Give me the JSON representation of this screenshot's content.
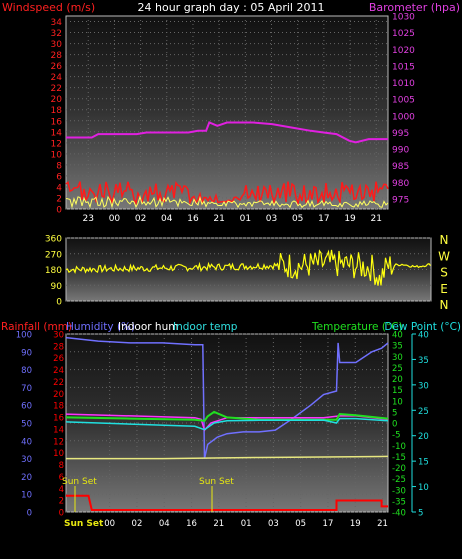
{
  "title": "24 hour graph day : 05 April 2011",
  "colors": {
    "wind_axis": "#ff2020",
    "baro_axis": "#e040e0",
    "wind_series": "#ff1a1a",
    "gust_series": "#ffff60",
    "baro_series": "#e020e0",
    "dir_series": "#ffff10",
    "rain": "#ff0000",
    "humidity": "#7070ff",
    "indoor_hum": "#ff30ff",
    "indoor_temp": "#30e0e0",
    "temperature": "#20e020",
    "dewpoint": "#20e0e0",
    "dir_axis": "#ffff40",
    "yellow_line": "#e8e880",
    "sunset": "#e8e810"
  },
  "chart_data": [
    {
      "type": "line",
      "id": "wind_baro",
      "title": "24 hour graph day : 05 April 2011",
      "ylabel_left": "Windspeed (m/s)",
      "ylabel_right": "Barometer (hpa)",
      "x_ticks": [
        "23",
        "00",
        "02",
        "04",
        "16",
        "21",
        "01",
        "03",
        "05",
        "17",
        "19",
        "21"
      ],
      "y_left_ticks": [
        "0",
        "2",
        "4",
        "6",
        "8",
        "10",
        "12",
        "14",
        "16",
        "18",
        "20",
        "22",
        "24",
        "26",
        "28",
        "30",
        "32",
        "34"
      ],
      "y_right_ticks": [
        "975",
        "980",
        "985",
        "990",
        "995",
        "1000",
        "1005",
        "1010",
        "1015",
        "1020",
        "1025",
        "1030"
      ],
      "ylim_left": [
        0,
        35
      ],
      "ylim_right": [
        972,
        1030
      ],
      "series": [
        {
          "key": "barometer",
          "axis": "right",
          "points": [
            [
              0,
              993.5
            ],
            [
              0.08,
              993.5
            ],
            [
              0.1,
              994.5
            ],
            [
              0.22,
              994.5
            ],
            [
              0.25,
              995
            ],
            [
              0.38,
              995
            ],
            [
              0.41,
              995.5
            ],
            [
              0.435,
              995.5
            ],
            [
              0.445,
              998
            ],
            [
              0.47,
              997
            ],
            [
              0.5,
              998
            ],
            [
              0.58,
              998
            ],
            [
              0.64,
              997.5
            ],
            [
              0.7,
              996.5
            ],
            [
              0.76,
              995.5
            ],
            [
              0.8,
              995
            ],
            [
              0.84,
              994.5
            ],
            [
              0.88,
              992.5
            ],
            [
              0.9,
              992
            ],
            [
              0.94,
              993
            ],
            [
              1.0,
              993
            ]
          ]
        },
        {
          "key": "windspeed",
          "axis": "left",
          "level_max": 4.5,
          "level_min": 1.0
        },
        {
          "key": "gust",
          "axis": "left",
          "level_max": 1.5,
          "level_min": 0.3
        }
      ]
    },
    {
      "type": "line",
      "id": "direction",
      "y_ticks": [
        "360",
        "270",
        "180",
        "90",
        "0"
      ],
      "y_right_labels": [
        "N",
        "W",
        "S",
        "E",
        "N"
      ],
      "ylim": [
        0,
        360
      ],
      "series": [
        {
          "key": "direction",
          "points": [
            [
              0,
              180
            ],
            [
              0.15,
              185
            ],
            [
              0.3,
              190
            ],
            [
              0.42,
              195
            ],
            [
              0.52,
              200
            ],
            [
              0.6,
              205
            ],
            [
              0.64,
              200
            ],
            [
              0.68,
              210
            ],
            [
              0.72,
              215
            ],
            [
              0.78,
              205
            ],
            [
              0.84,
              190
            ],
            [
              0.86,
              120
            ],
            [
              0.88,
              200
            ],
            [
              0.92,
              210
            ],
            [
              0.96,
              195
            ],
            [
              1.0,
              210
            ]
          ]
        }
      ]
    },
    {
      "type": "line",
      "id": "rain_hum_temp",
      "labels": {
        "rainfall": "Rainfall (mm)",
        "humidity": "Humidity (%)",
        "indoor_hum": "Indoor hum",
        "indoor_temp": "Indoor temp",
        "temperature": "Temperature (°C)",
        "dewpoint": "Dew Point (°C)"
      },
      "annotations": [
        "Sun Set",
        "Sun Set",
        "Sun Set"
      ],
      "y_left_ticks": [
        "0",
        "10",
        "20",
        "30",
        "40",
        "50",
        "60",
        "70",
        "80",
        "90",
        "100"
      ],
      "y_rain_ticks": [
        "0",
        "2",
        "4",
        "6",
        "8",
        "10",
        "12",
        "14",
        "16",
        "18",
        "20",
        "22",
        "24",
        "26",
        "28",
        "30"
      ],
      "y_temp_ticks": [
        "40",
        "35",
        "30",
        "25",
        "20",
        "15",
        "10",
        "5",
        "0",
        "-5",
        "-10",
        "-15",
        "-20",
        "-25",
        "-30",
        "-35",
        "-40"
      ],
      "y_dew_ticks": [
        "40",
        "35",
        "30",
        "25",
        "20",
        "15",
        "10",
        "5"
      ],
      "x_ticks": [
        "00",
        "02",
        "04",
        "16",
        "21",
        "01",
        "03",
        "05",
        "17",
        "19",
        "21"
      ],
      "ylim_left": [
        0,
        100
      ],
      "ylim_temp": [
        -40,
        40
      ],
      "series": [
        {
          "key": "humidity",
          "points": [
            [
              0,
              98
            ],
            [
              0.1,
              96
            ],
            [
              0.2,
              95
            ],
            [
              0.3,
              95
            ],
            [
              0.4,
              94
            ],
            [
              0.425,
              94
            ],
            [
              0.43,
              30
            ],
            [
              0.44,
              38
            ],
            [
              0.47,
              42
            ],
            [
              0.5,
              44
            ],
            [
              0.55,
              45
            ],
            [
              0.6,
              45
            ],
            [
              0.65,
              46
            ],
            [
              0.7,
              52
            ],
            [
              0.76,
              60
            ],
            [
              0.8,
              66
            ],
            [
              0.84,
              68
            ],
            [
              0.845,
              95
            ],
            [
              0.85,
              84
            ],
            [
              0.9,
              84
            ],
            [
              0.95,
              90
            ],
            [
              0.98,
              92
            ],
            [
              1.0,
              95
            ]
          ]
        },
        {
          "key": "indoor_hum",
          "points": [
            [
              0,
              55
            ],
            [
              0.4,
              53
            ],
            [
              0.42,
              52
            ],
            [
              0.43,
              46
            ],
            [
              0.45,
              50
            ],
            [
              0.5,
              53
            ],
            [
              0.6,
              53
            ],
            [
              0.7,
              53
            ],
            [
              0.8,
              53
            ],
            [
              0.85,
              54
            ],
            [
              0.9,
              54
            ],
            [
              1.0,
              52
            ]
          ]
        },
        {
          "key": "temperature",
          "points": [
            [
              0,
              2.5
            ],
            [
              0.2,
              2
            ],
            [
              0.4,
              1.5
            ],
            [
              0.43,
              1
            ],
            [
              0.44,
              3
            ],
            [
              0.46,
              5
            ],
            [
              0.5,
              2.5
            ],
            [
              0.6,
              1.5
            ],
            [
              0.7,
              1.5
            ],
            [
              0.8,
              1.5
            ],
            [
              0.84,
              1.5
            ],
            [
              0.85,
              4
            ],
            [
              0.9,
              3.5
            ],
            [
              1.0,
              2
            ]
          ]
        },
        {
          "key": "dewpoint",
          "points": [
            [
              0,
              0.5
            ],
            [
              0.2,
              -0.5
            ],
            [
              0.4,
              -1.5
            ],
            [
              0.43,
              -3
            ],
            [
              0.46,
              0
            ],
            [
              0.5,
              1
            ],
            [
              0.6,
              1.2
            ],
            [
              0.7,
              1.2
            ],
            [
              0.8,
              1.3
            ],
            [
              0.84,
              0
            ],
            [
              0.85,
              2
            ],
            [
              0.9,
              2
            ],
            [
              1.0,
              1
            ]
          ]
        },
        {
          "key": "yellow",
          "points": [
            [
              0,
              -16
            ],
            [
              0.3,
              -16
            ],
            [
              0.6,
              -15.5
            ],
            [
              0.8,
              -15.3
            ],
            [
              1.0,
              -15
            ]
          ]
        },
        {
          "key": "rainfall",
          "points": [
            [
              0,
              1.2
            ],
            [
              0.07,
              1.2
            ],
            [
              0.08,
              0
            ],
            [
              0.84,
              0
            ],
            [
              0.84,
              0.8
            ],
            [
              0.98,
              0.8
            ],
            [
              0.98,
              0.3
            ],
            [
              1.0,
              0.3
            ]
          ]
        }
      ]
    }
  ]
}
